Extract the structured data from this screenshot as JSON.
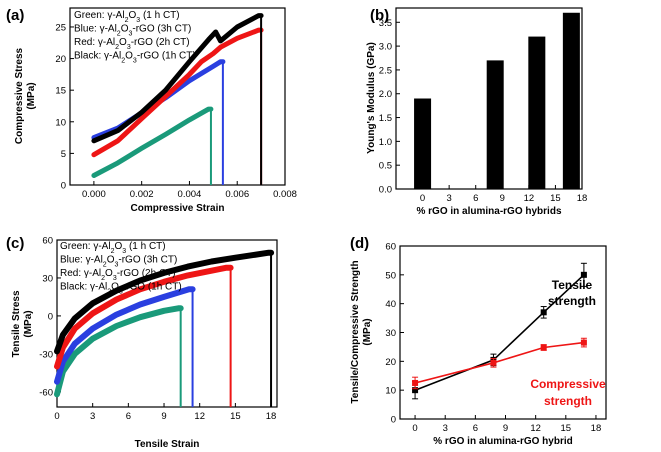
{
  "chart_data": [
    {
      "panel": "(a)",
      "type": "line",
      "xlabel": "Compressive Strain",
      "ylabel": "Compressive Stress (MPa)",
      "xlim": [
        -0.001,
        0.008
      ],
      "ylim": [
        0,
        28
      ],
      "xticks": [
        0.0,
        0.002,
        0.004,
        0.006,
        0.008
      ],
      "xtick_labels": [
        "0.000",
        "0.002",
        "0.004",
        "0.006",
        "0.008"
      ],
      "yticks": [
        0,
        5,
        10,
        15,
        20,
        25
      ],
      "yticklabels": [
        "0",
        "5",
        "10",
        "15",
        "20",
        "25"
      ],
      "legend": [
        {
          "label": "Green: γ-Al₂O₃ (1 h CT)"
        },
        {
          "label": "Blue: γ-Al₂O₃-rGO (3h CT)"
        },
        {
          "label": "Red: γ-Al₂O₃-rGO (2h CT)"
        },
        {
          "label": "Black: γ-Al₂O₃-rGO (1h CT)"
        }
      ],
      "series": [
        {
          "name": "Green",
          "color": "#1a9a7a",
          "x": [
            0.0,
            0.001,
            0.002,
            0.003,
            0.004,
            0.0048
          ],
          "y": [
            1.5,
            3.5,
            5.8,
            8.0,
            10.3,
            12.0
          ],
          "drop_x": 0.0049
        },
        {
          "name": "Blue",
          "color": "#2a3fe0",
          "x": [
            0.0,
            0.001,
            0.002,
            0.003,
            0.004,
            0.005,
            0.0053
          ],
          "y": [
            7.5,
            9.0,
            11.4,
            13.8,
            16.5,
            18.8,
            19.5
          ],
          "drop_x": 0.0054
        },
        {
          "name": "Red",
          "color": "#ee1515",
          "x": [
            0.0,
            0.001,
            0.002,
            0.003,
            0.004,
            0.0045,
            0.005,
            0.0053,
            0.006,
            0.0069
          ],
          "y": [
            4.8,
            7.0,
            10.5,
            14.0,
            17.5,
            19.5,
            20.8,
            21.8,
            23.2,
            24.5
          ],
          "drop_x": 0.007
        },
        {
          "name": "Black",
          "color": "#000000",
          "x": [
            0.0,
            0.001,
            0.002,
            0.003,
            0.004,
            0.0048,
            0.0051,
            0.0053,
            0.006,
            0.0069
          ],
          "y": [
            7.0,
            8.6,
            11.5,
            15.0,
            19.5,
            23.0,
            24.2,
            22.8,
            25.0,
            26.8
          ],
          "drop_x": 0.007
        }
      ]
    },
    {
      "panel": "(b)",
      "type": "bar",
      "xlabel": "% rGO in alumina-rGO hybrids",
      "ylabel": "Young's Modulus (GPa)",
      "xlim": [
        -3,
        18
      ],
      "ylim": [
        0,
        3.8
      ],
      "xticks": [
        0,
        3,
        6,
        9,
        12,
        15,
        18
      ],
      "xtick_labels": [
        "0",
        "3",
        "6",
        "9",
        "12",
        "15",
        "18"
      ],
      "yticks": [
        0,
        0.5,
        1.0,
        1.5,
        2.0,
        2.5,
        3.0,
        3.5
      ],
      "yticklabels": [
        "0.0",
        "0.5",
        "1.0",
        "1.5",
        "2.0",
        "2.5",
        "3.0",
        "3.5"
      ],
      "bars": [
        {
          "x": 0,
          "value": 1.9
        },
        {
          "x": 8.2,
          "value": 2.7
        },
        {
          "x": 12.9,
          "value": 3.2
        },
        {
          "x": 16.8,
          "value": 3.7
        }
      ]
    },
    {
      "panel": "(c)",
      "type": "line",
      "xlabel": "Tensile Strain",
      "ylabel": "Tensile Stress (MPa)",
      "xlim": [
        0,
        18.5
      ],
      "ylim": [
        -72,
        60
      ],
      "xticks": [
        0,
        3,
        6,
        9,
        12,
        15,
        18
      ],
      "xtick_labels": [
        "0",
        "3",
        "6",
        "9",
        "12",
        "15",
        "18"
      ],
      "yticks": [
        -60,
        -30,
        0,
        30,
        60
      ],
      "yticklabels": [
        "-60",
        "-30",
        "0",
        "30",
        "60"
      ],
      "legend": [
        {
          "label": "Green: γ-Al₂O₃ (1 h CT)"
        },
        {
          "label": "Blue:   γ-Al₂O₃-rGO (3h CT)"
        },
        {
          "label": "Red:    γ-Al₂O₃-rGO (2h CT)"
        },
        {
          "label": "Black:  γ-Al₂O₃-rGO (1h CT)"
        }
      ],
      "series": [
        {
          "name": "Green",
          "color": "#1a9a7a",
          "x": [
            0,
            0.5,
            1.5,
            3,
            5,
            7,
            9,
            10.2
          ],
          "y": [
            -62,
            -44,
            -30,
            -18,
            -8,
            -1,
            4,
            6
          ],
          "drop_x": 10.4
        },
        {
          "name": "Blue",
          "color": "#2a3fe0",
          "x": [
            0,
            0.5,
            1.5,
            3,
            5,
            7,
            9,
            11.1
          ],
          "y": [
            -52,
            -36,
            -22,
            -10,
            1,
            9,
            15,
            21
          ],
          "drop_x": 11.4
        },
        {
          "name": "Red",
          "color": "#ee1515",
          "x": [
            0,
            0.5,
            1.5,
            3,
            5,
            7,
            9,
            11,
            14.2
          ],
          "y": [
            -40,
            -25,
            -10,
            2,
            13,
            21,
            27,
            32,
            38
          ],
          "drop_x": 14.6
        },
        {
          "name": "Black",
          "color": "#000000",
          "x": [
            0,
            0.5,
            1.5,
            3,
            5,
            7,
            9,
            11,
            13,
            15,
            17.8
          ],
          "y": [
            -28,
            -15,
            -2,
            10,
            20,
            28,
            34,
            39,
            43,
            46,
            50
          ],
          "drop_x": 18.0
        }
      ]
    },
    {
      "panel": "(d)",
      "type": "line",
      "xlabel": "% rGO in alumina-rGO hybrid",
      "ylabel": "Tensile/Compressive Strength (MPa)",
      "xlim": [
        -1.5,
        19
      ],
      "ylim": [
        0,
        60
      ],
      "xticks": [
        0,
        3,
        6,
        9,
        12,
        15,
        18
      ],
      "xtick_labels": [
        "0",
        "3",
        "6",
        "9",
        "12",
        "15",
        "18"
      ],
      "yticks": [
        0,
        10,
        20,
        30,
        40,
        50,
        60
      ],
      "yticklabels": [
        "0",
        "10",
        "20",
        "30",
        "40",
        "50",
        "60"
      ],
      "series": [
        {
          "name": "Tensile strength",
          "color": "#000000",
          "x": [
            0,
            7.8,
            12.8,
            16.8
          ],
          "y": [
            10,
            20.5,
            37,
            50
          ],
          "yerr": [
            3,
            2,
            2,
            4
          ]
        },
        {
          "name": "Compressive strength",
          "color": "#ee1515",
          "x": [
            0,
            7.8,
            12.8,
            16.8
          ],
          "y": [
            12.5,
            19.5,
            24.8,
            26.5
          ],
          "yerr": [
            2,
            1.5,
            1,
            1.5
          ]
        }
      ],
      "annotations": [
        {
          "line1": "Tensile",
          "line2": "strength",
          "color": "#000000"
        },
        {
          "line1": "Compressive",
          "line2": "strength",
          "color": "#ee1515"
        }
      ]
    }
  ]
}
